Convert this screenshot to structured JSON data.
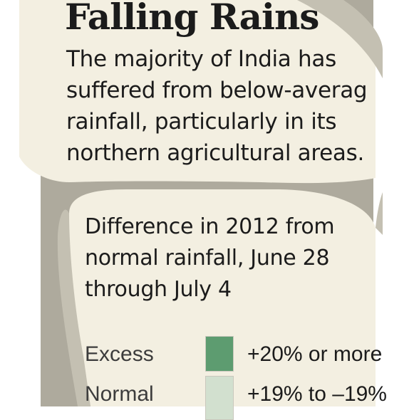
{
  "headline": "Falling Rains",
  "intro_lines": [
    "The majority of India has",
    "suffered from below-averag",
    "rainfall, particularly in its",
    "northern agricultural areas."
  ],
  "subtitle_lines": [
    "Difference in 2012 from",
    "normal rainfall, June 28",
    "through July 4"
  ],
  "legend": [
    {
      "label": "Excess",
      "range": "+20% or more",
      "color": "#5d9c70"
    },
    {
      "label": "Normal",
      "range": "+19% to –19%",
      "color": "#d2e0cf"
    }
  ],
  "colors": {
    "background": "#aeaa9d",
    "panel_fill": "#f3efe1",
    "text": "#1b1b1b"
  }
}
